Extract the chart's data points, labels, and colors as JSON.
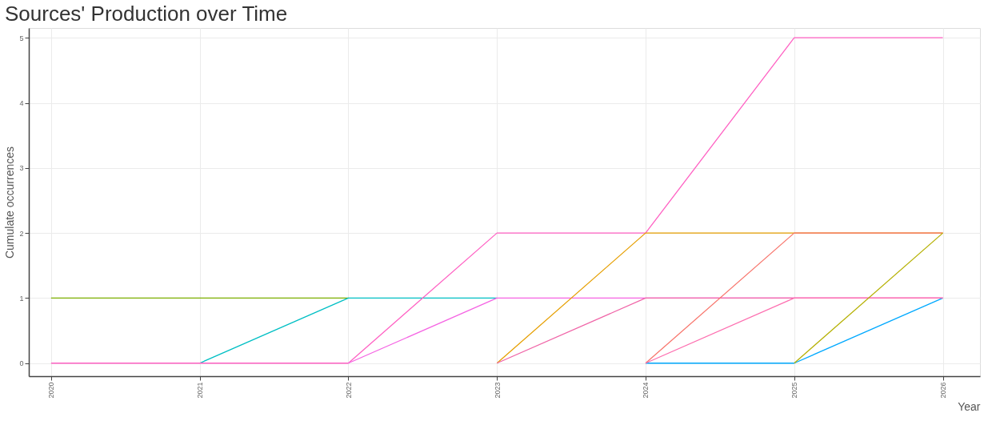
{
  "chart_data": {
    "type": "line",
    "title": "Sources' Production over Time",
    "xlabel": "Year",
    "ylabel": "Cumulate occurrences",
    "xlim": [
      2019.85,
      2026.25
    ],
    "xticks": [
      2020,
      2021,
      2022,
      2023,
      2024,
      2025,
      2026
    ],
    "ylim": [
      -0.2,
      5.15
    ],
    "yticks": [
      0,
      1,
      2,
      3,
      4,
      5
    ],
    "grid": true,
    "marker": "none",
    "line_style": "solid",
    "series": [
      {
        "color": "#7cae00",
        "x": [
          2020,
          2021,
          2022
        ],
        "values": [
          1,
          1,
          1
        ]
      },
      {
        "color": "#00bfc4",
        "x": [
          2021,
          2022,
          2023
        ],
        "values": [
          0,
          1,
          1
        ]
      },
      {
        "color": "#00a9ff",
        "x": [
          2024,
          2025,
          2026
        ],
        "values": [
          0,
          0,
          1
        ]
      },
      {
        "color": "#ff61c3",
        "x": [
          2020,
          2021,
          2022,
          2023,
          2024,
          2025,
          2026
        ],
        "values": [
          0,
          0,
          0,
          2,
          2,
          5,
          5
        ]
      },
      {
        "color": "#f564e3",
        "x": [
          2022,
          2023,
          2024,
          2025,
          2026
        ],
        "values": [
          0,
          1,
          1,
          1,
          1
        ]
      },
      {
        "color": "#e69f00",
        "x": [
          2023,
          2024,
          2025,
          2026
        ],
        "values": [
          0,
          2,
          2,
          2
        ]
      },
      {
        "color": "#f066a8",
        "x": [
          2023,
          2024,
          2025,
          2026
        ],
        "values": [
          0,
          1,
          1,
          1
        ]
      },
      {
        "color": "#f8766d",
        "x": [
          2024,
          2025,
          2026
        ],
        "values": [
          0,
          2,
          2
        ]
      },
      {
        "color": "#fd6fb0",
        "x": [
          2024,
          2025,
          2026
        ],
        "values": [
          0,
          1,
          1
        ]
      },
      {
        "color": "#b5b000",
        "x": [
          2025,
          2026
        ],
        "values": [
          0,
          2
        ]
      }
    ]
  }
}
